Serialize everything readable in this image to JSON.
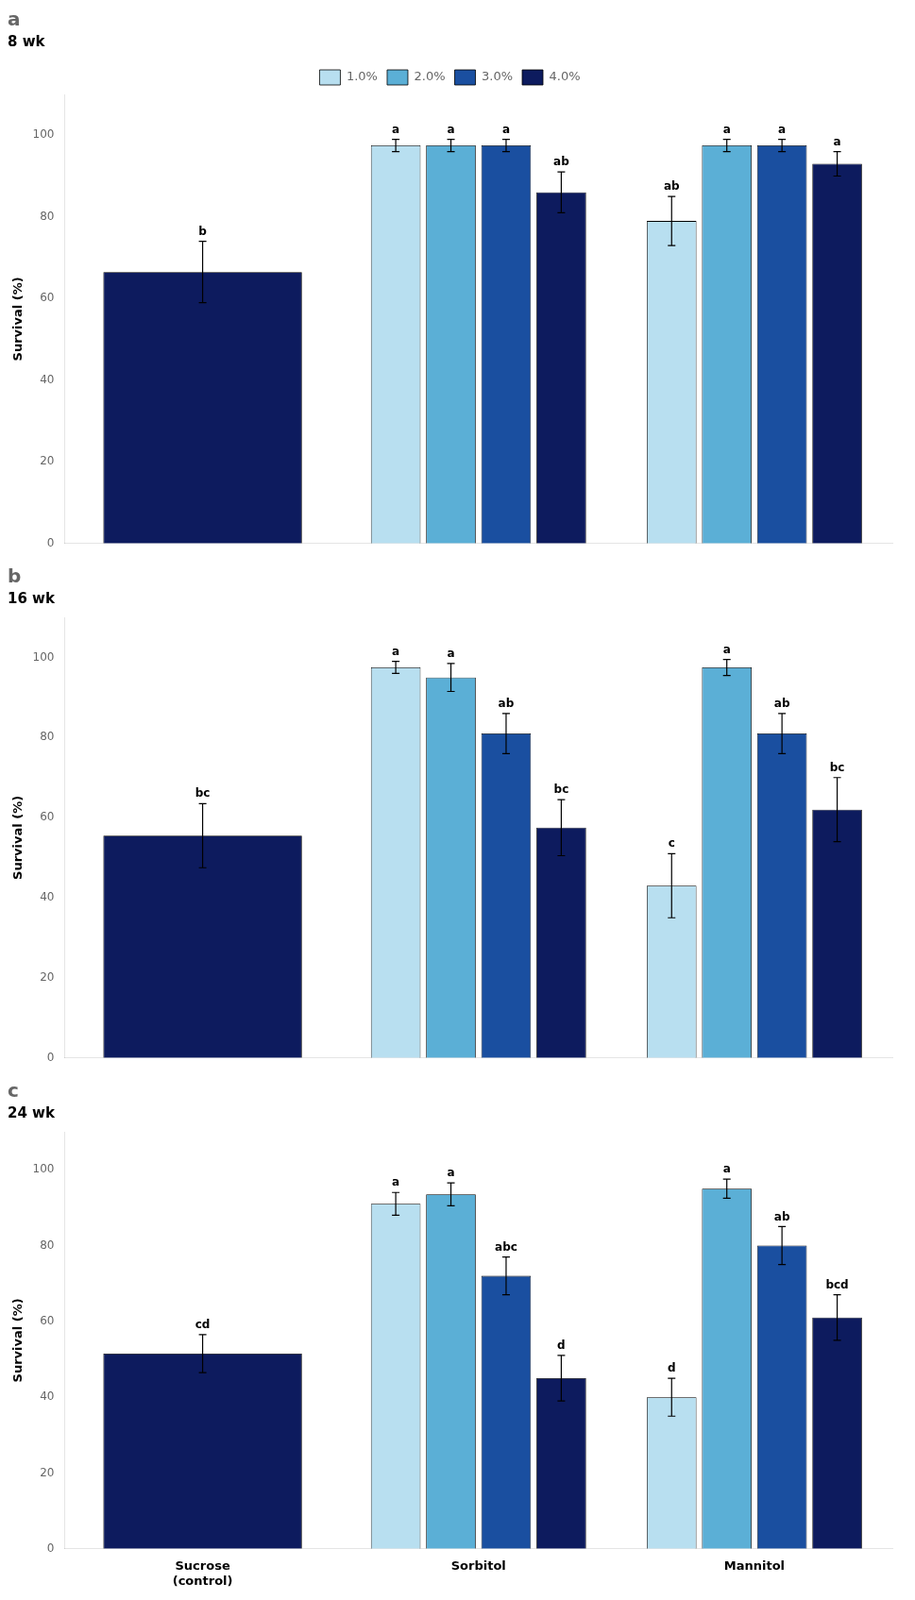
{
  "chart_data": [
    {
      "type": "bar",
      "title": "a",
      "subtitle": "8 wk",
      "categories": [
        null,
        null,
        null
      ],
      "ylabel": "Survival (%)",
      "ylim": [
        0,
        110
      ],
      "yticks": [
        0,
        20,
        40,
        60,
        80,
        100
      ],
      "grid": false,
      "legend": "top",
      "tick_labels": "y",
      "series": [
        {
          "name": "1.0%",
          "color": "#b8dff0",
          "values": [
            null,
            97.5,
            79.0
          ],
          "errors": [
            null,
            1.5,
            6.0
          ],
          "letters": [
            null,
            "a",
            "ab"
          ]
        },
        {
          "name": "2.0%",
          "color": "#5bafd6",
          "values": [
            null,
            97.5,
            97.5
          ],
          "errors": [
            null,
            1.5,
            1.5
          ],
          "letters": [
            null,
            "a",
            "a"
          ]
        },
        {
          "name": "3.0%",
          "color": "#1a4fa0",
          "values": [
            null,
            97.5,
            97.5
          ],
          "errors": [
            null,
            1.5,
            1.5
          ],
          "letters": [
            null,
            "a",
            "a"
          ]
        },
        {
          "name": "4.0%",
          "color": "#0d1b5e",
          "values": [
            66.5,
            86.0,
            93.0
          ],
          "errors": [
            7.5,
            5.0,
            3.0
          ],
          "letters": [
            "b",
            "ab",
            "a"
          ]
        }
      ]
    },
    {
      "type": "bar",
      "title": "b",
      "subtitle": "16 wk",
      "categories": [
        null,
        null,
        null
      ],
      "ylabel": "Survival (%)",
      "ylim": [
        0,
        110
      ],
      "yticks": [
        0,
        20,
        40,
        60,
        80,
        100
      ],
      "grid": false,
      "tick_labels": "y",
      "series": [
        {
          "name": "1.0%",
          "color": "#b8dff0",
          "values": [
            null,
            97.5,
            43.0
          ],
          "errors": [
            null,
            1.5,
            8.0
          ],
          "letters": [
            null,
            "a",
            "c"
          ]
        },
        {
          "name": "2.0%",
          "color": "#5bafd6",
          "values": [
            null,
            95.0,
            97.5
          ],
          "errors": [
            null,
            3.5,
            2.0
          ],
          "letters": [
            null,
            "a",
            "a"
          ]
        },
        {
          "name": "3.0%",
          "color": "#1a4fa0",
          "values": [
            null,
            81.0,
            81.0
          ],
          "errors": [
            null,
            5.0,
            5.0
          ],
          "letters": [
            null,
            "ab",
            "ab"
          ]
        },
        {
          "name": "4.0%",
          "color": "#0d1b5e",
          "values": [
            55.5,
            57.5,
            62.0
          ],
          "errors": [
            8.0,
            7.0,
            8.0
          ],
          "letters": [
            "bc",
            "bc",
            "bc"
          ]
        }
      ]
    },
    {
      "type": "bar",
      "title": "c",
      "subtitle": "24 wk",
      "categories": [
        "Sucrose\n(control)",
        "Sorbitol",
        "Mannitol"
      ],
      "ylabel": "Survival (%)",
      "ylim": [
        0,
        110
      ],
      "yticks": [
        0,
        20,
        40,
        60,
        80,
        100
      ],
      "grid": false,
      "series": [
        {
          "name": "1.0%",
          "color": "#b8dff0",
          "values": [
            null,
            91.0,
            40.0
          ],
          "errors": [
            null,
            3.0,
            5.0
          ],
          "letters": [
            null,
            "a",
            "d"
          ]
        },
        {
          "name": "2.0%",
          "color": "#5bafd6",
          "values": [
            null,
            93.5,
            95.0
          ],
          "errors": [
            null,
            3.0,
            2.5
          ],
          "letters": [
            null,
            "a",
            "a"
          ]
        },
        {
          "name": "3.0%",
          "color": "#1a4fa0",
          "values": [
            null,
            72.0,
            80.0
          ],
          "errors": [
            null,
            5.0,
            5.0
          ],
          "letters": [
            null,
            "abc",
            "ab"
          ]
        },
        {
          "name": "4.0%",
          "color": "#0d1b5e",
          "values": [
            51.5,
            45.0,
            61.0
          ],
          "errors": [
            5.0,
            6.0,
            6.0
          ],
          "letters": [
            "cd",
            "d",
            "bcd"
          ]
        }
      ]
    }
  ]
}
